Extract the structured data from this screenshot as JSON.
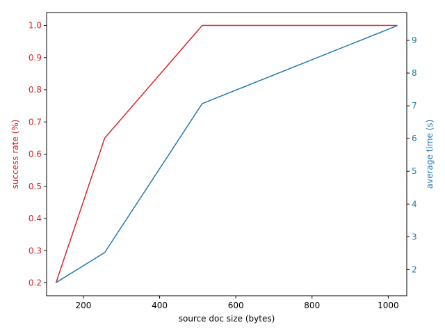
{
  "chart_data": {
    "type": "line",
    "title": "",
    "xlabel": "source doc size (bytes)",
    "x": [
      128,
      256,
      512,
      1024
    ],
    "xlim": [
      103.4,
      1048.6
    ],
    "xticks": [
      200,
      400,
      600,
      800,
      1000
    ],
    "y_left": {
      "label": "success rate (%)",
      "color": "#d62728",
      "lim": [
        0.16,
        1.04
      ],
      "ticks": [
        "0.2",
        "0.3",
        "0.4",
        "0.5",
        "0.6",
        "0.7",
        "0.8",
        "0.9",
        "1.0"
      ]
    },
    "y_right": {
      "label": "average time (s)",
      "color": "#1f77b4",
      "lim": [
        1.2,
        9.85
      ],
      "ticks": [
        "2",
        "3",
        "4",
        "5",
        "6",
        "7",
        "8",
        "9"
      ]
    },
    "series": [
      {
        "name": "success rate",
        "axis": "left",
        "color": "#d62728",
        "values": [
          0.2,
          0.65,
          1.0,
          1.0
        ]
      },
      {
        "name": "average time",
        "axis": "right",
        "color": "#1f77b4",
        "values": [
          1.6,
          2.52,
          7.07,
          9.45
        ]
      }
    ]
  }
}
